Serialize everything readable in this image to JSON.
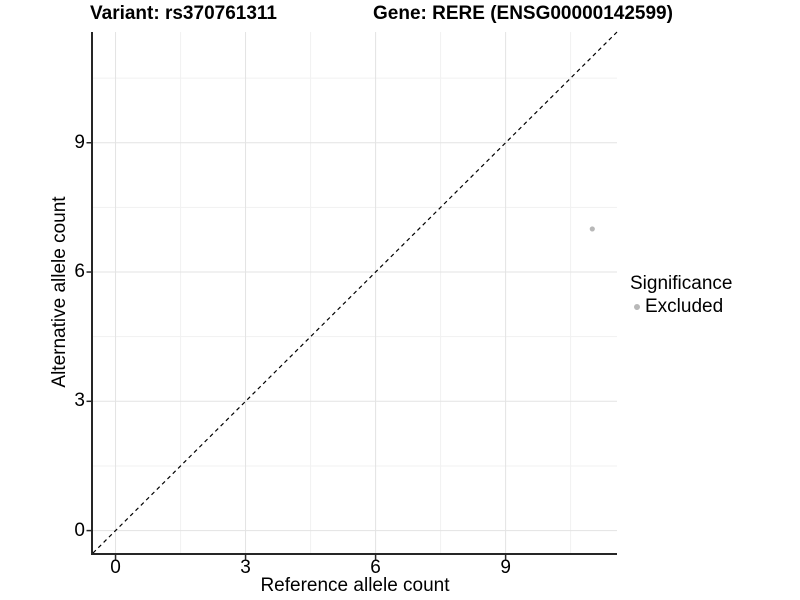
{
  "chart_data": {
    "type": "scatter",
    "title_left": "Variant: rs370761311",
    "title_right": "Gene: RERE (ENSG00000142599)",
    "xlabel": "Reference allele count",
    "ylabel": "Alternative allele count",
    "xlim": [
      -0.52,
      11.57
    ],
    "ylim": [
      -0.52,
      11.57
    ],
    "x_ticks": [
      0,
      3,
      6,
      9
    ],
    "y_ticks": [
      0,
      3,
      6,
      9
    ],
    "x_minor_ticks": [
      1.5,
      4.5,
      7.5,
      10.5
    ],
    "y_minor_ticks": [
      1.5,
      4.5,
      7.5,
      10.5
    ],
    "grid": true,
    "series": [
      {
        "name": "Excluded",
        "color": "#b8b8b8",
        "points": [
          {
            "x": 11,
            "y": 7
          }
        ]
      }
    ],
    "identity_line": {
      "type": "y=x",
      "style": "dashed",
      "color": "#000000"
    },
    "legend": {
      "title": "Significance",
      "position": "right",
      "items": [
        {
          "label": "Excluded",
          "color": "#b8b8b8"
        }
      ]
    },
    "colors": {
      "grid_major": "#e3e3e3",
      "grid_minor": "#f1f1f1",
      "axis_line": "#262626",
      "tick_mark": "#262626",
      "text": "#000000"
    }
  }
}
